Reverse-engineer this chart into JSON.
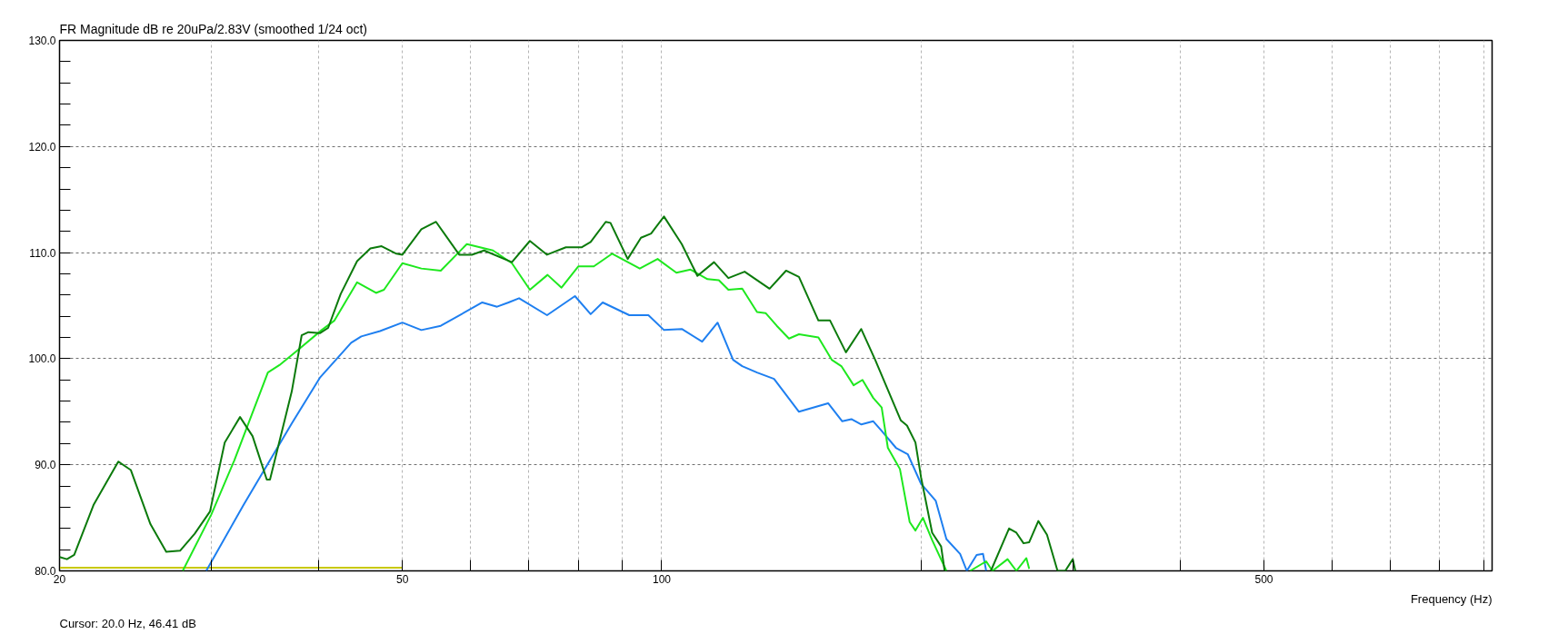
{
  "chart_data": {
    "type": "line",
    "title": "FR Magnitude dB re 20uPa/2.83V (smoothed 1/24 oct)",
    "xlabel": "Frequency (Hz)",
    "annotations": [
      "Cursor: 20.0 Hz, 46.41 dB"
    ],
    "log": "x",
    "grid": true,
    "xlim": [
      20,
      920
    ],
    "ylim": [
      80,
      130
    ],
    "xticks": [
      20,
      {
        "value": 30,
        "label": null
      },
      {
        "value": 40,
        "label": null
      },
      50,
      {
        "value": 60,
        "label": null
      },
      {
        "value": 70,
        "label": null
      },
      {
        "value": 80,
        "label": null
      },
      {
        "value": 90,
        "label": null
      },
      100,
      {
        "value": 200,
        "label": null
      },
      {
        "value": 300,
        "label": null
      },
      {
        "value": 400,
        "label": null
      },
      500,
      {
        "value": 600,
        "label": null
      },
      {
        "value": 700,
        "label": null
      },
      {
        "value": 800,
        "label": null
      },
      {
        "value": 900,
        "label": null
      }
    ],
    "yticks": [
      {
        "value": 80,
        "label": "80.0"
      },
      {
        "value": 82,
        "label": null
      },
      {
        "value": 84,
        "label": null
      },
      {
        "value": 86,
        "label": null
      },
      {
        "value": 88,
        "label": null
      },
      {
        "value": 90,
        "label": "90.0"
      },
      {
        "value": 92,
        "label": null
      },
      {
        "value": 94,
        "label": null
      },
      {
        "value": 96,
        "label": null
      },
      {
        "value": 98,
        "label": null
      },
      {
        "value": 100,
        "label": "100.0"
      },
      {
        "value": 102,
        "label": null
      },
      {
        "value": 104,
        "label": null
      },
      {
        "value": 106,
        "label": null
      },
      {
        "value": 108,
        "label": null
      },
      {
        "value": 110,
        "label": "110.0"
      },
      {
        "value": 112,
        "label": null
      },
      {
        "value": 114,
        "label": null
      },
      {
        "value": 116,
        "label": null
      },
      {
        "value": 118,
        "label": null
      },
      {
        "value": 120,
        "label": "120.0"
      },
      {
        "value": 122,
        "label": null
      },
      {
        "value": 124,
        "label": null
      },
      {
        "value": 126,
        "label": null
      },
      {
        "value": 128,
        "label": null
      },
      {
        "value": 130,
        "label": "130.0"
      }
    ],
    "series": [
      {
        "color": "#c8c800",
        "x": [
          20,
          50
        ],
        "values": [
          80.3,
          80.3
        ]
      },
      {
        "color": "#1e7ff0",
        "x": [
          29.6,
          32.7,
          37.2,
          40.1,
          43.6,
          44.8,
          47.1,
          50,
          52.6,
          55.4,
          61.9,
          64.4,
          66.4,
          68.3,
          73.6,
          79.3,
          82.7,
          85.4,
          91.7,
          96.5,
          100.6,
          105.5,
          111.4,
          116.1,
          121,
          124,
          129,
          135,
          144.3,
          156,
          162,
          166,
          170.5,
          176,
          180,
          187,
          193,
          200,
          208,
          214,
          222,
          226,
          232,
          236,
          238
        ],
        "values": [
          80,
          86.2,
          93.9,
          98.2,
          101.5,
          102.1,
          102.6,
          103.4,
          102.7,
          103.1,
          105.3,
          104.9,
          105.3,
          105.7,
          104.1,
          105.9,
          104.2,
          105.3,
          104.1,
          104.1,
          102.7,
          102.8,
          101.6,
          103.4,
          99.9,
          99.3,
          98.7,
          98.1,
          95,
          95.8,
          94.1,
          94.3,
          93.8,
          94.1,
          93.2,
          91.6,
          91,
          88.2,
          86.6,
          83,
          81.6,
          80,
          81.5,
          81.6,
          80
        ]
      },
      {
        "color": "#1ee81e",
        "x": [
          27.8,
          30,
          31.9,
          34.9,
          36,
          37.8,
          40.3,
          41.7,
          44.3,
          46.6,
          47.6,
          50,
          52.6,
          55.4,
          59.4,
          63.7,
          67,
          70.3,
          73.7,
          76.5,
          80,
          83.4,
          87.6,
          94.3,
          98.9,
          104,
          108,
          113,
          116.5,
          119.5,
          124,
          129,
          132,
          136,
          140.5,
          144.3,
          152,
          157.5,
          161.6,
          167,
          171,
          176,
          180,
          183,
          189,
          194,
          197,
          201,
          206,
          214,
          221,
          228,
          238,
          242,
          252,
          258,
          265,
          267
        ],
        "values": [
          80,
          85.3,
          90.4,
          98.7,
          99.4,
          100.8,
          102.7,
          103.6,
          107.2,
          106.2,
          106.5,
          109,
          108.5,
          108.3,
          110.8,
          110.2,
          109,
          106.5,
          107.9,
          106.7,
          108.7,
          108.7,
          109.9,
          108.5,
          109.4,
          108.1,
          108.4,
          107.5,
          107.4,
          106.5,
          106.6,
          104.4,
          104.3,
          103.1,
          101.9,
          102.3,
          102,
          99.9,
          99.3,
          97.5,
          98,
          96.3,
          95.4,
          91.6,
          89.6,
          84.6,
          83.8,
          85,
          82.9,
          80,
          null,
          80,
          80.9,
          80,
          81.1,
          80,
          81.2,
          80.2
        ]
      },
      {
        "color": "#0b7a0b",
        "x": [
          20,
          20.4,
          20.8,
          21.9,
          23.4,
          24.2,
          25.5,
          26.6,
          27.6,
          28.7,
          29.9,
          31.1,
          32.4,
          33.5,
          34.8,
          35.1,
          37.2,
          38.2,
          38.9,
          40.1,
          41,
          42.4,
          44.3,
          45.9,
          47.3,
          49.2,
          50,
          52.6,
          54.7,
          58.2,
          60.2,
          62.2,
          67,
          70.3,
          73.6,
          77.4,
          80.7,
          82.7,
          86.1,
          87.2,
          91.3,
          94.6,
          97.2,
          100.6,
          105.5,
          110,
          115,
          119.5,
          124.8,
          133.4,
          139.4,
          144.3,
          152,
          156.8,
          163.6,
          170.4,
          176.9,
          189.4,
          192.6,
          197,
          200,
          206,
          211,
          213,
          227,
          241,
          253,
          258,
          263,
          267,
          273.6,
          280,
          288,
          294,
          300,
          302
        ],
        "values": [
          81.3,
          81.1,
          81.5,
          86.2,
          90.3,
          89.5,
          84.4,
          81.8,
          81.9,
          83.5,
          85.6,
          92.1,
          94.5,
          92.7,
          88.6,
          88.6,
          96.9,
          102.2,
          102.5,
          102.4,
          102.9,
          106.1,
          109.2,
          110.4,
          110.6,
          109.9,
          109.8,
          112.2,
          112.9,
          109.8,
          109.8,
          110.2,
          109.1,
          111.1,
          109.8,
          110.5,
          110.5,
          111,
          112.9,
          112.8,
          109.4,
          111.4,
          111.8,
          113.4,
          110.8,
          107.8,
          109.1,
          107.6,
          108.2,
          106.6,
          108.3,
          107.7,
          103.6,
          103.6,
          100.6,
          102.8,
          99.9,
          94.2,
          93.7,
          92.1,
          88.8,
          83.6,
          82.3,
          80,
          null,
          80,
          84,
          83.6,
          82.6,
          82.7,
          84.7,
          83.4,
          80,
          80,
          81.1,
          80
        ]
      }
    ]
  }
}
